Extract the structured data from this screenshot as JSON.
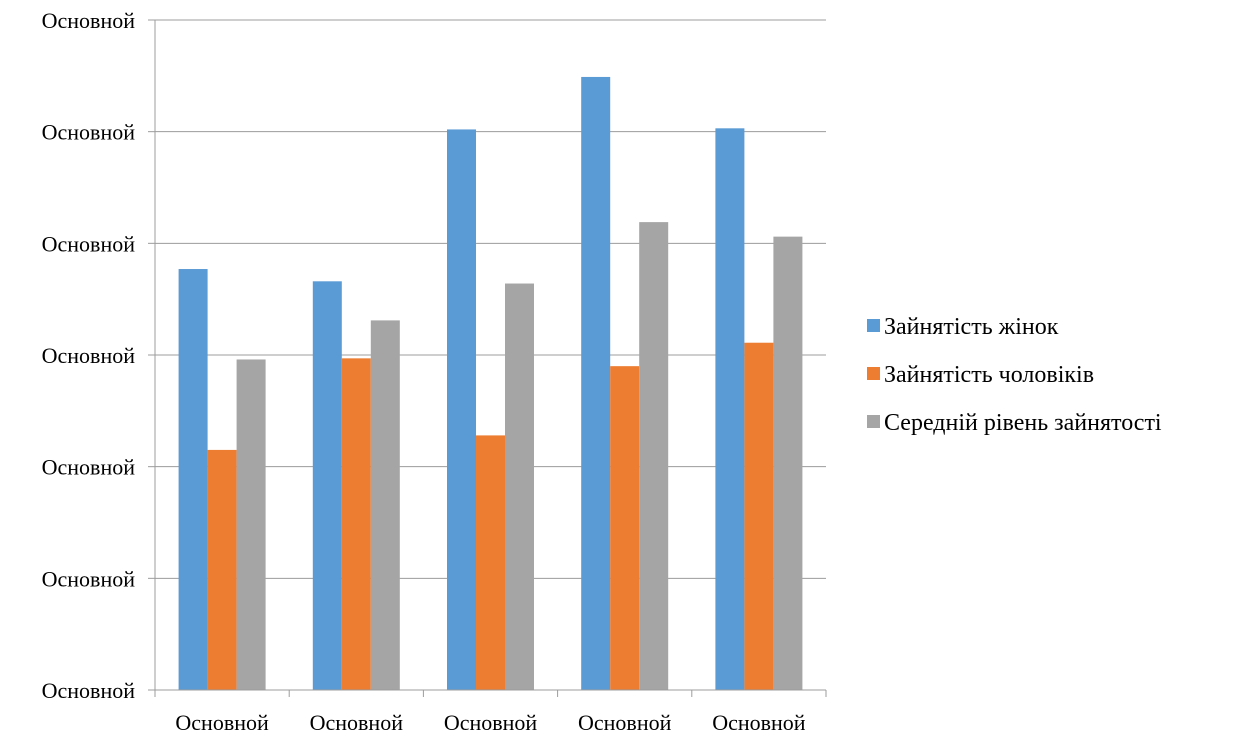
{
  "chart_data": {
    "type": "bar",
    "title": "",
    "xlabel": "",
    "ylabel": "",
    "categories": [
      "Основной",
      "Основной",
      "Основной",
      "Основной",
      "Основной"
    ],
    "y_tick_labels": [
      "Основной",
      "Основной",
      "Основной",
      "Основной",
      "Основной",
      "Основной",
      "Основной"
    ],
    "ylim": [
      0,
      6
    ],
    "grid": true,
    "legend_position": "right",
    "series": [
      {
        "name": "Зайнятість жінок",
        "color": "#5B9BD5",
        "values": [
          3.77,
          3.66,
          5.02,
          5.49,
          5.03
        ]
      },
      {
        "name": "Зайнятість чоловіків",
        "color": "#ED7D31",
        "values": [
          2.15,
          2.97,
          2.28,
          2.9,
          3.11
        ]
      },
      {
        "name": "Середній рівень зайнятості",
        "color": "#A5A5A5",
        "values": [
          2.96,
          3.31,
          3.64,
          4.19,
          4.06
        ]
      }
    ]
  }
}
